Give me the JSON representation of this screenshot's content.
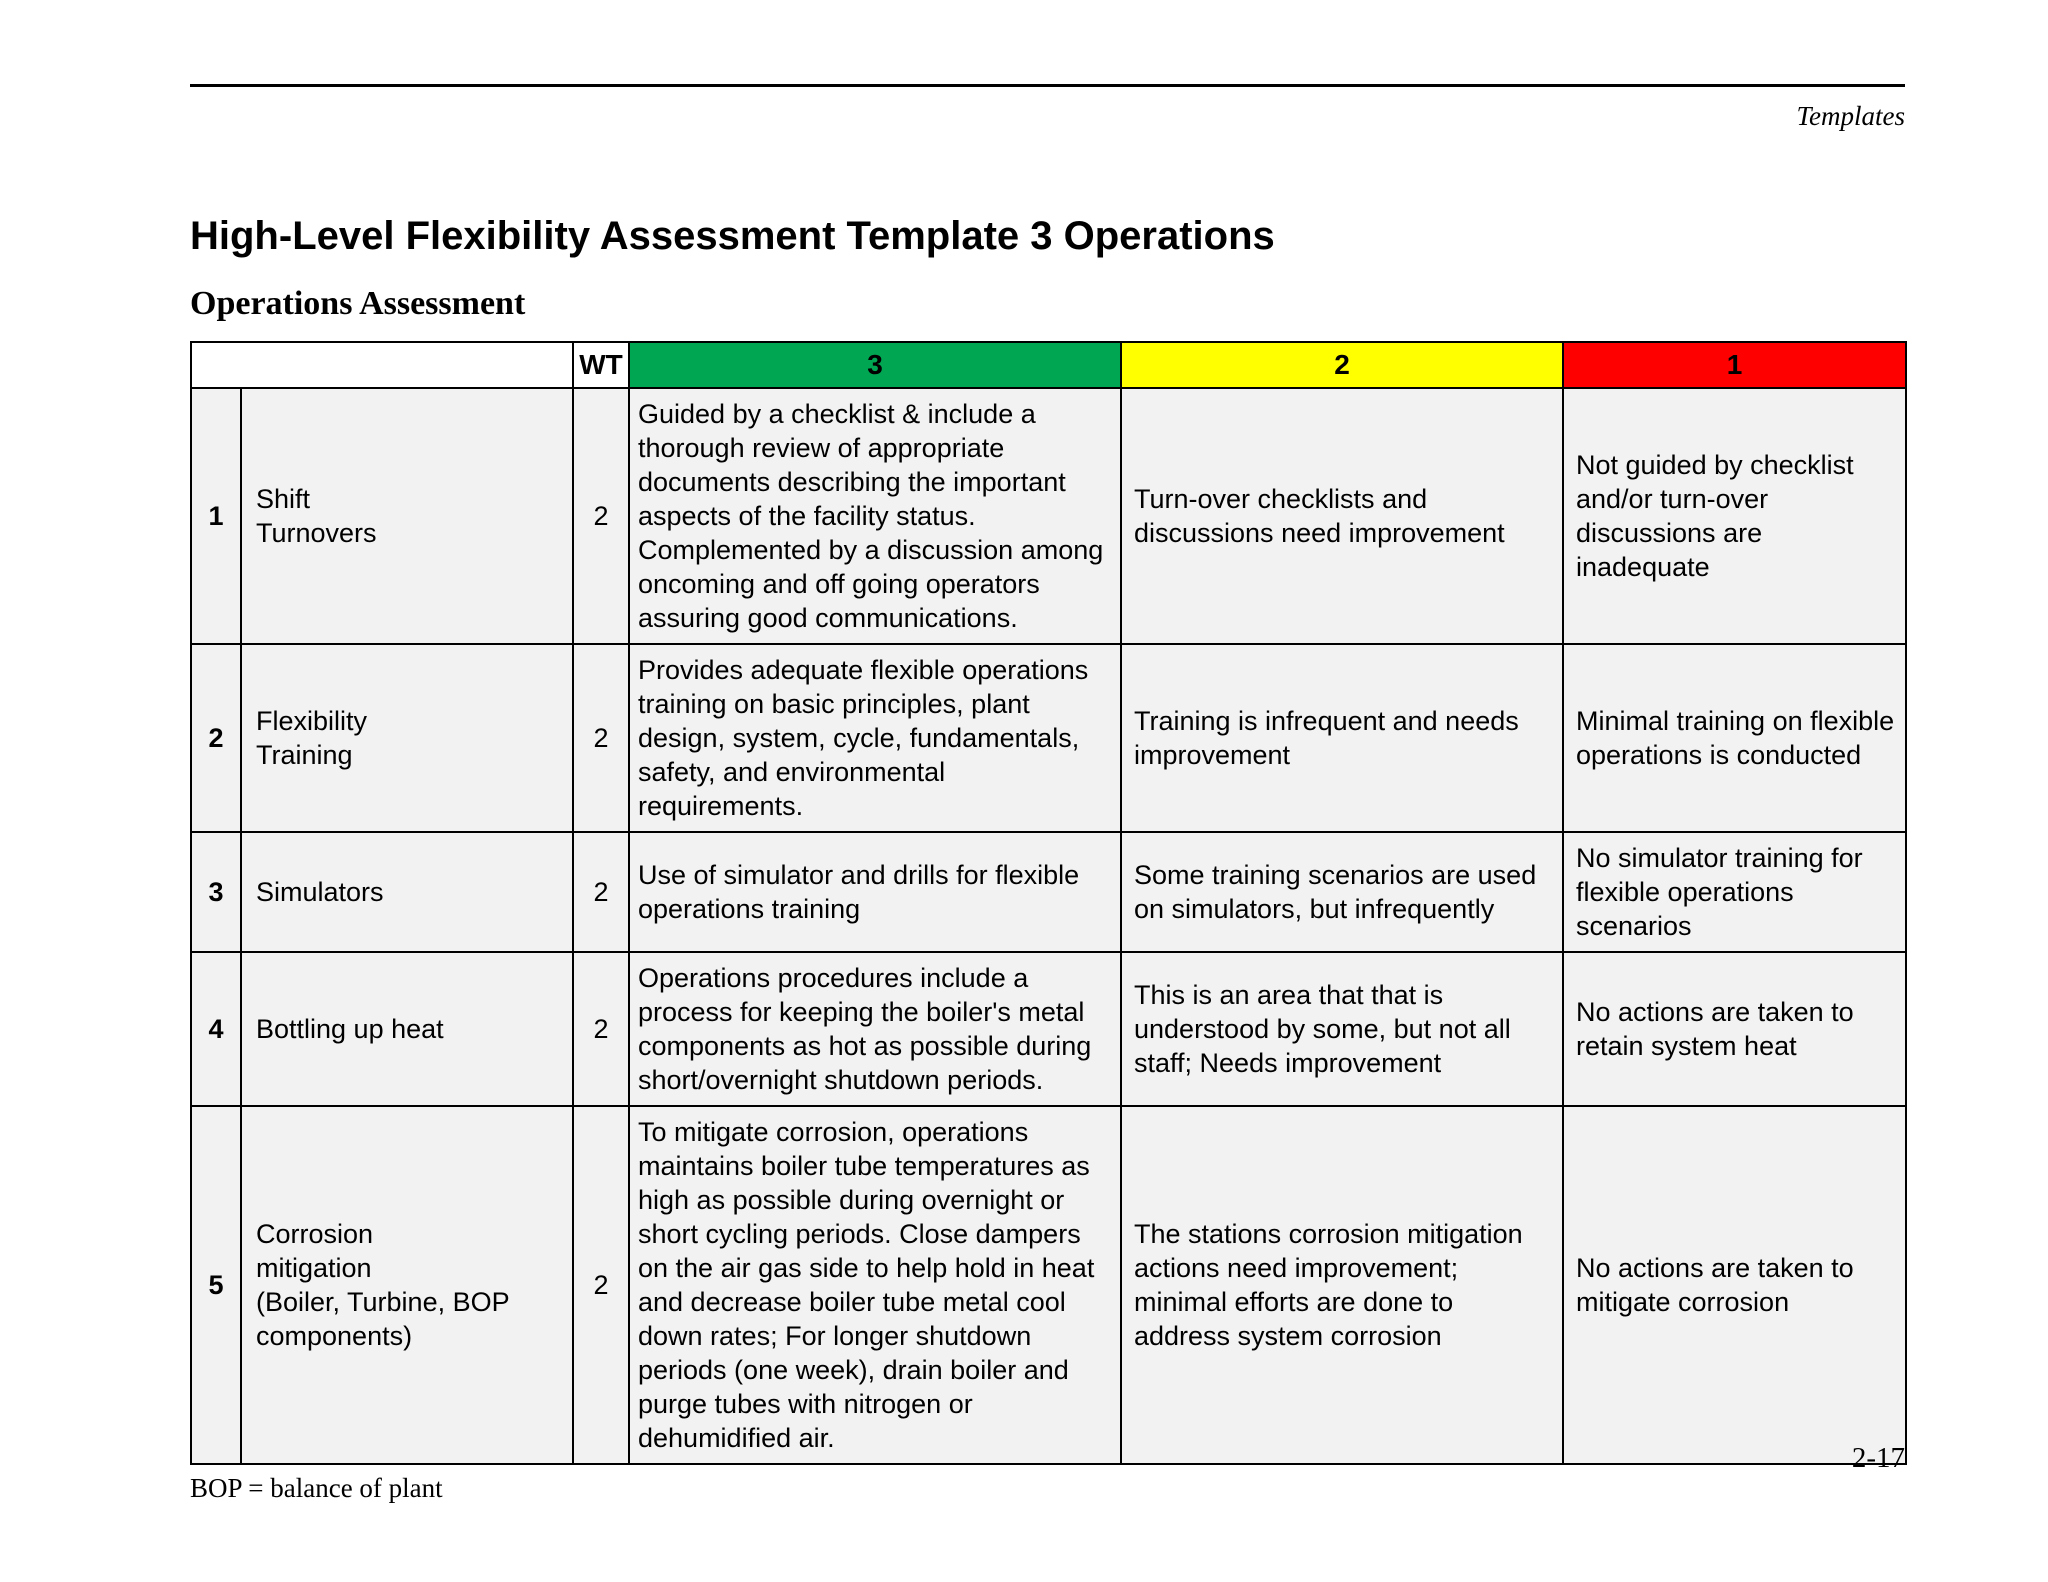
{
  "page": {
    "header_label": "Templates",
    "title": "High-Level Flexibility Assessment Template 3 Operations",
    "subtitle": "Operations Assessment",
    "footnote": "BOP = balance of plant",
    "page_number": "2-17"
  },
  "colors": {
    "score3_bg": "#00A651",
    "score2_bg": "#FFFF00",
    "score1_bg": "#FF0000",
    "cell_bg": "#F2F2F2",
    "border": "#000000"
  },
  "table": {
    "wt_header": "WT",
    "score_headers": [
      "3",
      "2",
      "1"
    ],
    "rows": [
      {
        "num": "1",
        "criterion": "Shift\nTurnovers",
        "wt": "2",
        "score3": "Guided by a checklist & include a thorough review of appropriate documents describing the important aspects of the facility status. Complemented by a discussion among oncoming and off going operators assuring good communications.",
        "score2": "Turn-over checklists and discussions need improvement",
        "score1": "Not guided by checklist and/or turn-over discussions are inadequate"
      },
      {
        "num": "2",
        "criterion": "Flexibility\nTraining",
        "wt": "2",
        "score3": "Provides adequate flexible operations training on basic principles, plant design, system, cycle, fundamentals, safety, and environmental requirements.",
        "score2": "Training is infrequent and needs improvement",
        "score1": "Minimal training on flexible operations is conducted"
      },
      {
        "num": "3",
        "criterion": "Simulators",
        "wt": "2",
        "score3": "Use of simulator and drills for flexible operations training",
        "score2": "Some training scenarios are used on simulators, but infrequently",
        "score1": "No simulator training for flexible operations scenarios"
      },
      {
        "num": "4",
        "criterion": "Bottling up heat",
        "wt": "2",
        "score3": "Operations procedures include a process for keeping the boiler's metal components as hot as possible during short/overnight shutdown periods.",
        "score2": "This is an area that that is understood by some, but not all staff; Needs improvement",
        "score1": "No actions are taken to retain system heat"
      },
      {
        "num": "5",
        "criterion": "Corrosion\nmitigation\n(Boiler, Turbine, BOP components)",
        "wt": "2",
        "score3": "To mitigate corrosion, operations maintains boiler tube temperatures as high as possible during overnight or short cycling periods. Close dampers on the air gas side to help hold in heat and decrease boiler tube metal cool down rates; For longer shutdown periods (one week), drain boiler and purge tubes with nitrogen or dehumidified air.",
        "score2": "The stations corrosion mitigation actions need improvement; minimal efforts are done to address system corrosion",
        "score1": "No actions are taken to mitigate corrosion"
      }
    ]
  }
}
